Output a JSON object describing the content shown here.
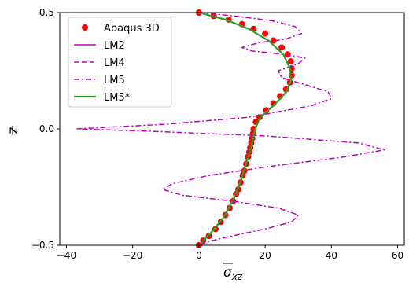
{
  "chart_data": {
    "type": "line",
    "xlabel": "σ̄_xz",
    "ylabel": "z̄",
    "xlim": [
      -42,
      62
    ],
    "ylim": [
      -0.5,
      0.5
    ],
    "xticks": [
      -40,
      -20,
      0,
      20,
      40,
      60
    ],
    "xtick_labels": [
      "−40",
      "−20",
      "0",
      "20",
      "40",
      "60"
    ],
    "yticks": [
      -0.5,
      0.0,
      0.5
    ],
    "ytick_labels": [
      "−0.5",
      "0.0",
      "0.5"
    ],
    "grid": false,
    "legend_position": "top-left",
    "series": [
      {
        "name": "Abaqus 3D",
        "style": "markers",
        "color": "#ff0000",
        "points": [
          [
            0,
            0.5
          ],
          [
            4.5,
            0.485
          ],
          [
            9,
            0.47
          ],
          [
            13,
            0.45
          ],
          [
            16.5,
            0.43
          ],
          [
            20,
            0.41
          ],
          [
            22.5,
            0.38
          ],
          [
            25,
            0.35
          ],
          [
            26.8,
            0.32
          ],
          [
            27.7,
            0.29
          ],
          [
            28,
            0.26
          ],
          [
            28,
            0.23
          ],
          [
            27.5,
            0.2
          ],
          [
            26.3,
            0.17
          ],
          [
            24.5,
            0.14
          ],
          [
            22.5,
            0.11
          ],
          [
            20.3,
            0.08
          ],
          [
            18.3,
            0.05
          ],
          [
            17.2,
            0.03
          ],
          [
            16.5,
            0.0
          ],
          [
            16.3,
            -0.02
          ],
          [
            16.1,
            -0.04
          ],
          [
            15.8,
            -0.06
          ],
          [
            15.5,
            -0.08
          ],
          [
            15.2,
            -0.1
          ],
          [
            14.8,
            -0.12
          ],
          [
            14.3,
            -0.15
          ],
          [
            13.7,
            -0.18
          ],
          [
            13.2,
            -0.2
          ],
          [
            12.6,
            -0.23
          ],
          [
            11.9,
            -0.26
          ],
          [
            11.2,
            -0.28
          ],
          [
            10.3,
            -0.31
          ],
          [
            9.3,
            -0.34
          ],
          [
            8.0,
            -0.37
          ],
          [
            6.6,
            -0.4
          ],
          [
            5.0,
            -0.43
          ],
          [
            3.0,
            -0.46
          ],
          [
            1.3,
            -0.48
          ],
          [
            0,
            -0.5
          ]
        ]
      },
      {
        "name": "LM2",
        "style": "solid",
        "color": "#bf00bf",
        "points": [
          [
            0,
            0.5
          ],
          [
            8,
            0.47
          ],
          [
            15,
            0.43
          ],
          [
            21,
            0.38
          ],
          [
            25.5,
            0.32
          ],
          [
            27.5,
            0.26
          ],
          [
            27.8,
            0.21
          ],
          [
            26.5,
            0.16
          ],
          [
            22.5,
            0.1
          ],
          [
            18.5,
            0.05
          ],
          [
            17,
            0.0
          ],
          [
            16.2,
            -0.05
          ],
          [
            15.3,
            -0.1
          ],
          [
            14,
            -0.16
          ],
          [
            12.5,
            -0.23
          ],
          [
            10.5,
            -0.3
          ],
          [
            7.5,
            -0.38
          ],
          [
            4,
            -0.44
          ],
          [
            0,
            -0.5
          ]
        ]
      },
      {
        "name": "LM4",
        "style": "dashed",
        "color": "#bf00bf",
        "points": [
          [
            0,
            0.5
          ],
          [
            8,
            0.47
          ],
          [
            15,
            0.43
          ],
          [
            21,
            0.38
          ],
          [
            25.5,
            0.32
          ],
          [
            27.5,
            0.26
          ],
          [
            27.8,
            0.21
          ],
          [
            26.5,
            0.16
          ],
          [
            22.5,
            0.1
          ],
          [
            18.5,
            0.05
          ],
          [
            17,
            0.0
          ],
          [
            16.2,
            -0.05
          ],
          [
            15.3,
            -0.1
          ],
          [
            14,
            -0.16
          ],
          [
            12.5,
            -0.23
          ],
          [
            10.5,
            -0.3
          ],
          [
            7.5,
            -0.38
          ],
          [
            4,
            -0.44
          ],
          [
            0,
            -0.5
          ]
        ]
      },
      {
        "name": "LM5",
        "style": "dashdot",
        "color": "#bf00bf",
        "points": [
          [
            0,
            0.5
          ],
          [
            11,
            0.485
          ],
          [
            22,
            0.465
          ],
          [
            29,
            0.44
          ],
          [
            31,
            0.41
          ],
          [
            26,
            0.385
          ],
          [
            18,
            0.37
          ],
          [
            13,
            0.35
          ],
          [
            16,
            0.335
          ],
          [
            26,
            0.32
          ],
          [
            32,
            0.305
          ],
          [
            30,
            0.28
          ],
          [
            24,
            0.25
          ],
          [
            25,
            0.22
          ],
          [
            32,
            0.19
          ],
          [
            39,
            0.16
          ],
          [
            40,
            0.13
          ],
          [
            34,
            0.1
          ],
          [
            15,
            0.05
          ],
          [
            -10,
            0.02
          ],
          [
            -37,
            0.0
          ],
          [
            -15,
            -0.01
          ],
          [
            20,
            -0.03
          ],
          [
            48,
            -0.06
          ],
          [
            56,
            -0.09
          ],
          [
            44,
            -0.12
          ],
          [
            22,
            -0.16
          ],
          [
            3,
            -0.2
          ],
          [
            -8,
            -0.235
          ],
          [
            -11,
            -0.26
          ],
          [
            -5,
            -0.285
          ],
          [
            10,
            -0.31
          ],
          [
            24,
            -0.34
          ],
          [
            30,
            -0.37
          ],
          [
            28,
            -0.4
          ],
          [
            20,
            -0.43
          ],
          [
            10,
            -0.46
          ],
          [
            4,
            -0.48
          ],
          [
            0,
            -0.5
          ]
        ]
      },
      {
        "name": "LM5*",
        "style": "solid",
        "color": "#2ca02c",
        "points": [
          [
            0,
            0.5
          ],
          [
            8,
            0.47
          ],
          [
            15,
            0.43
          ],
          [
            21,
            0.38
          ],
          [
            25.5,
            0.32
          ],
          [
            27.5,
            0.26
          ],
          [
            27.8,
            0.21
          ],
          [
            26.5,
            0.16
          ],
          [
            22.5,
            0.1
          ],
          [
            18.5,
            0.05
          ],
          [
            17,
            0.0
          ],
          [
            16.2,
            -0.05
          ],
          [
            15.3,
            -0.1
          ],
          [
            14,
            -0.16
          ],
          [
            12.5,
            -0.23
          ],
          [
            10.5,
            -0.3
          ],
          [
            7.5,
            -0.38
          ],
          [
            4,
            -0.44
          ],
          [
            0,
            -0.5
          ]
        ]
      }
    ]
  }
}
